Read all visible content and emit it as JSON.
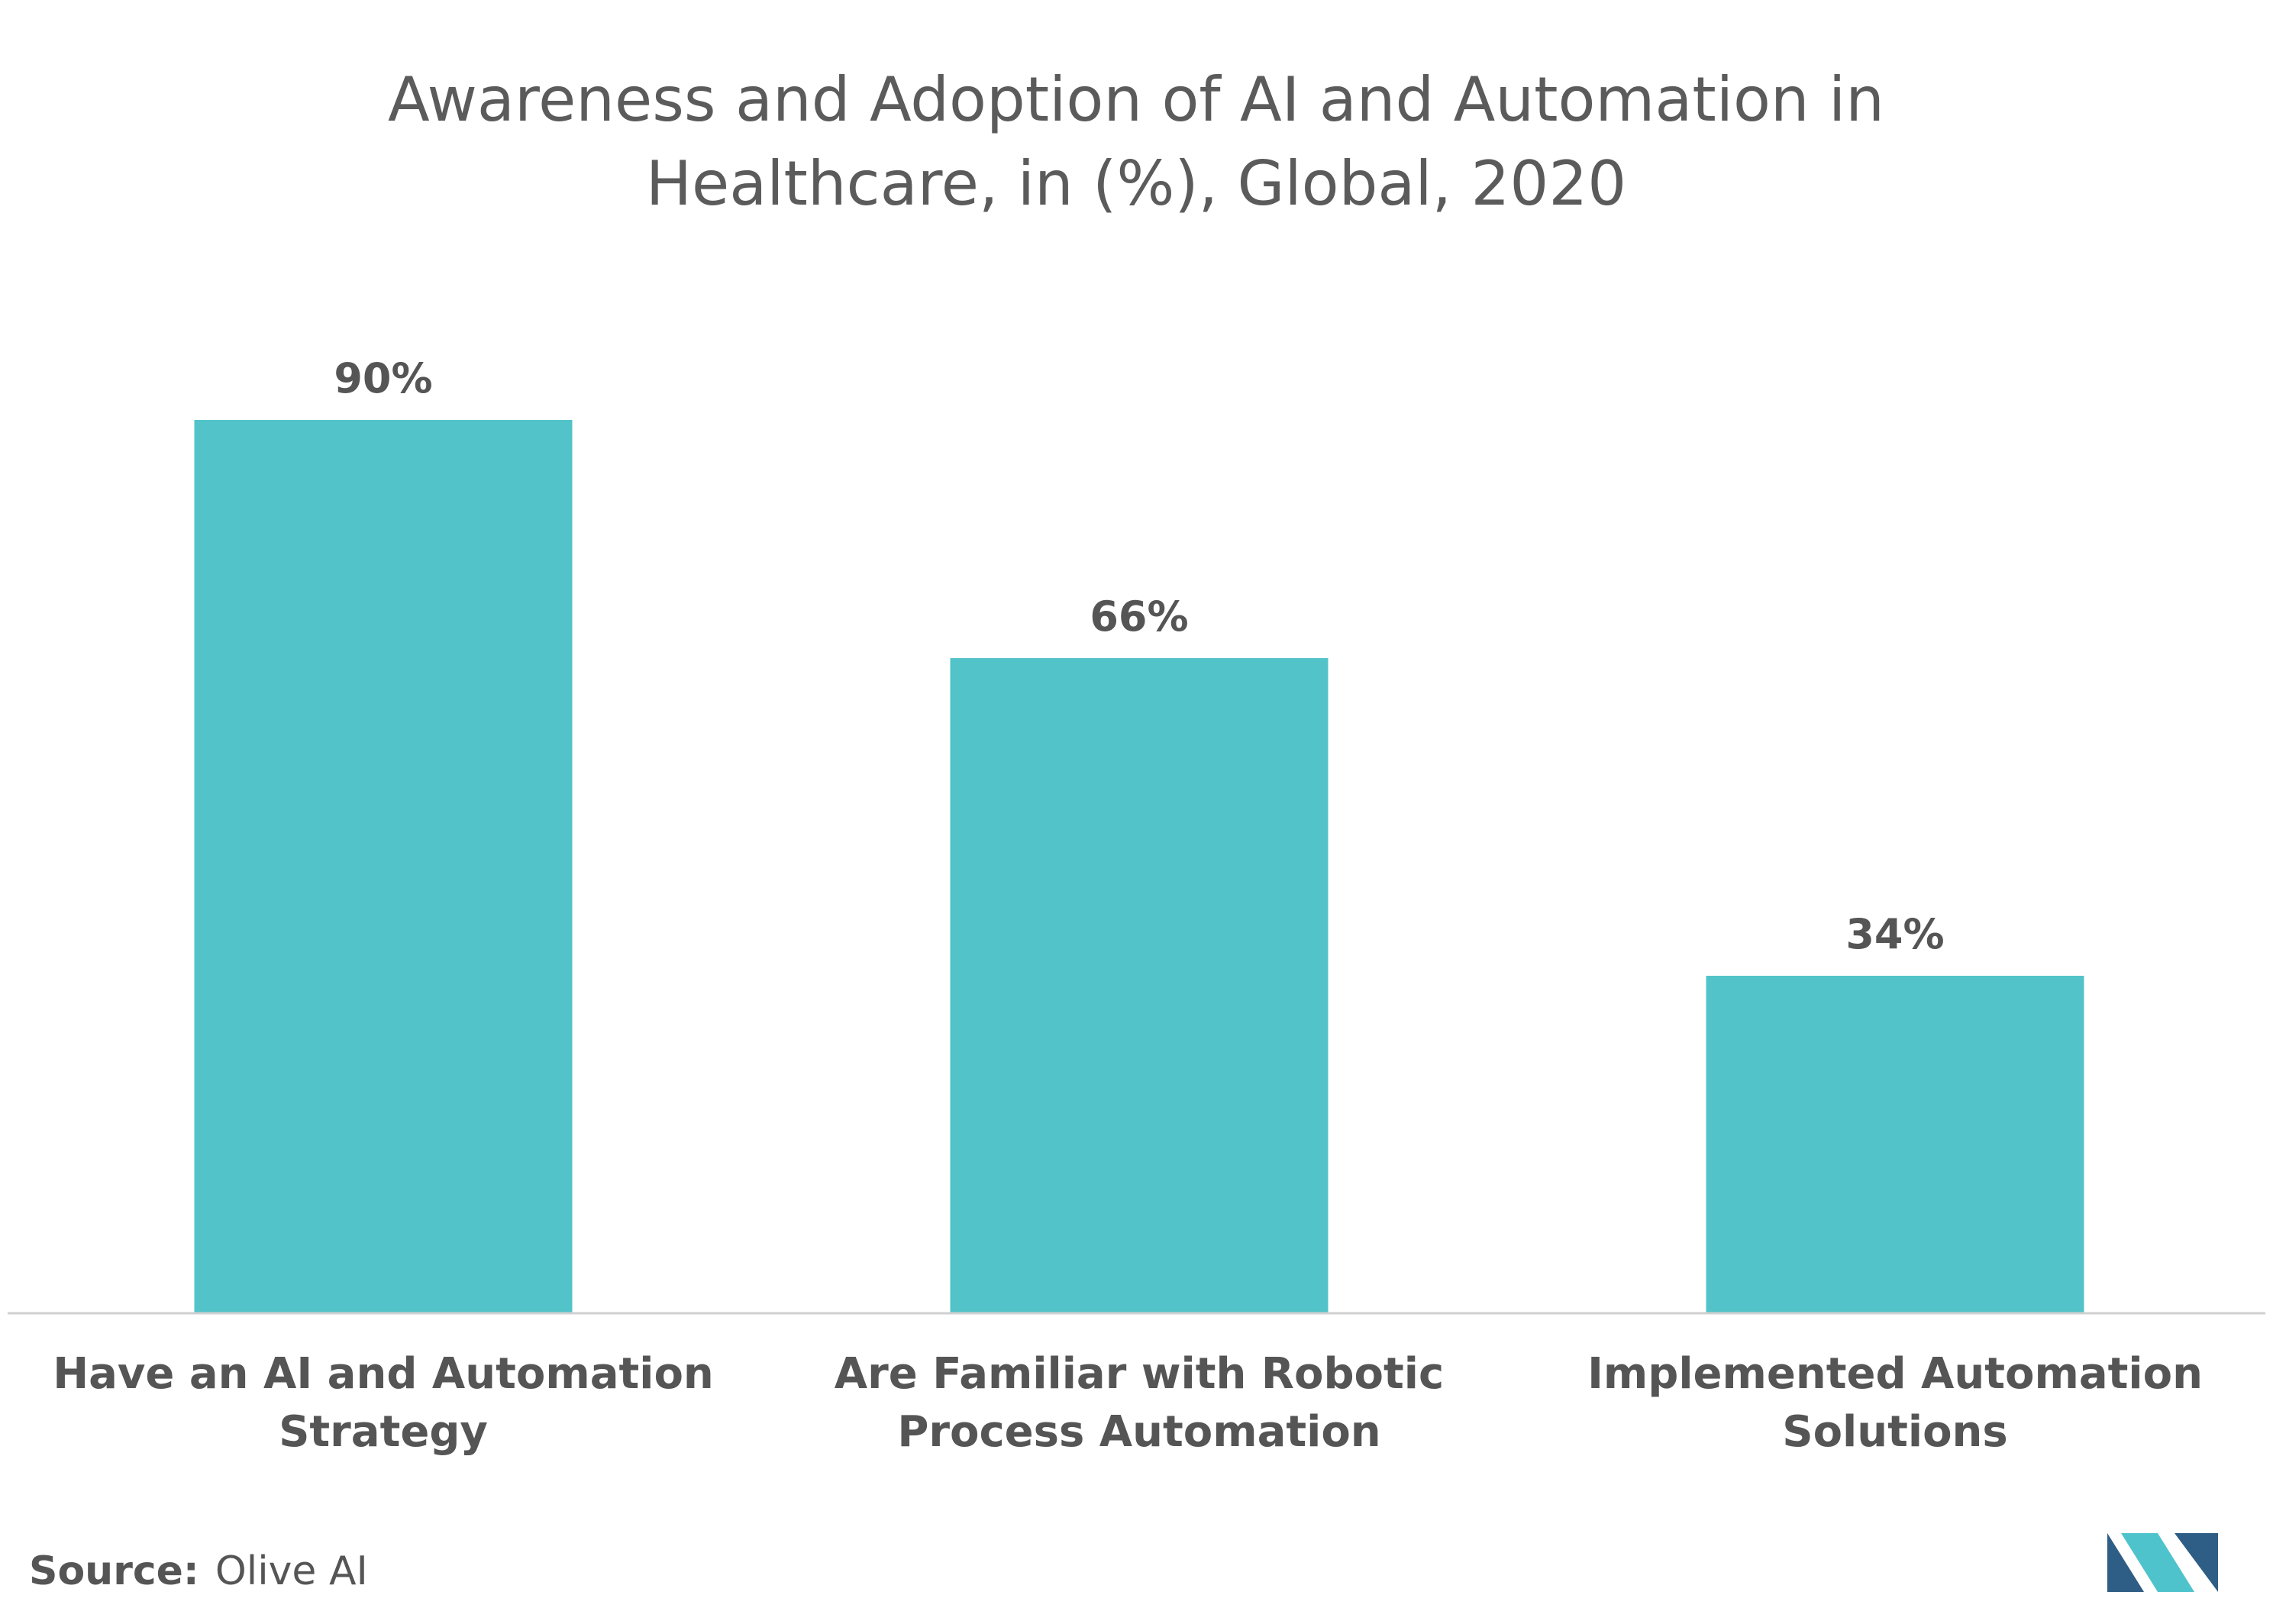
{
  "chart_data": {
    "type": "bar",
    "title_lines": [
      "Awareness and Adoption of AI and Automation in",
      "Healthcare, in (%), Global, 2020"
    ],
    "categories": [
      [
        "Have an AI and Automation",
        "Strategy"
      ],
      [
        "Are Familiar with Robotic",
        "Process Automation"
      ],
      [
        "Implemented Automation",
        "Solutions"
      ]
    ],
    "values": [
      90,
      66,
      34
    ],
    "value_labels": [
      "90%",
      "66%",
      "34%"
    ],
    "ylim": [
      0,
      100
    ],
    "grid": false,
    "legend": "none",
    "bar_color": "#52c3c9",
    "axis_color": "#d0d0d0"
  },
  "source": {
    "key": "Source:",
    "value": "Olive AI"
  },
  "logo": {
    "name": "mordor-intelligence-logo",
    "colors": [
      "#2e5d85",
      "#4fc3cc"
    ]
  }
}
